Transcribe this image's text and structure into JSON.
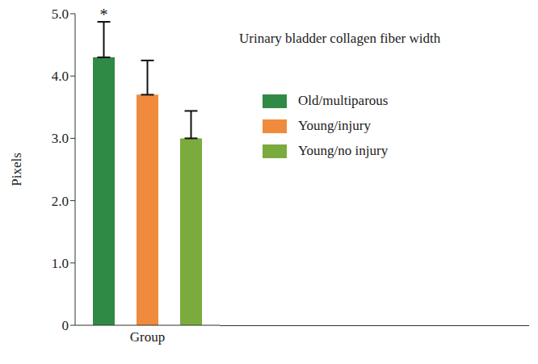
{
  "chart_data": {
    "type": "bar",
    "title": "Urinary bladder collagen fiber width",
    "y_label": "Pixels",
    "categories": [
      "Group"
    ],
    "series": [
      {
        "name": "Old/multiparous",
        "color": "#2f8a45",
        "values": [
          4.3
        ],
        "error": [
          0.57
        ]
      },
      {
        "name": "Young/injury",
        "color": "#f08a3c",
        "values": [
          3.7
        ],
        "error": [
          0.55
        ]
      },
      {
        "name": "Young/no injury",
        "color": "#7aab3c",
        "values": [
          3.0
        ],
        "error": [
          0.44
        ]
      }
    ],
    "ylim": [
      0,
      5
    ],
    "yticks": [
      0,
      {
        "value": 1,
        "label": "1.0"
      },
      {
        "value": 2,
        "label": "2.0"
      },
      {
        "value": 3,
        "label": "3.0"
      },
      {
        "value": 4,
        "label": "4.0"
      },
      {
        "value": 5,
        "label": "5.0"
      }
    ],
    "annotations": [
      {
        "text": "*",
        "series": "Old/multiparous",
        "category": "Group"
      }
    ],
    "legend": "upper right"
  }
}
